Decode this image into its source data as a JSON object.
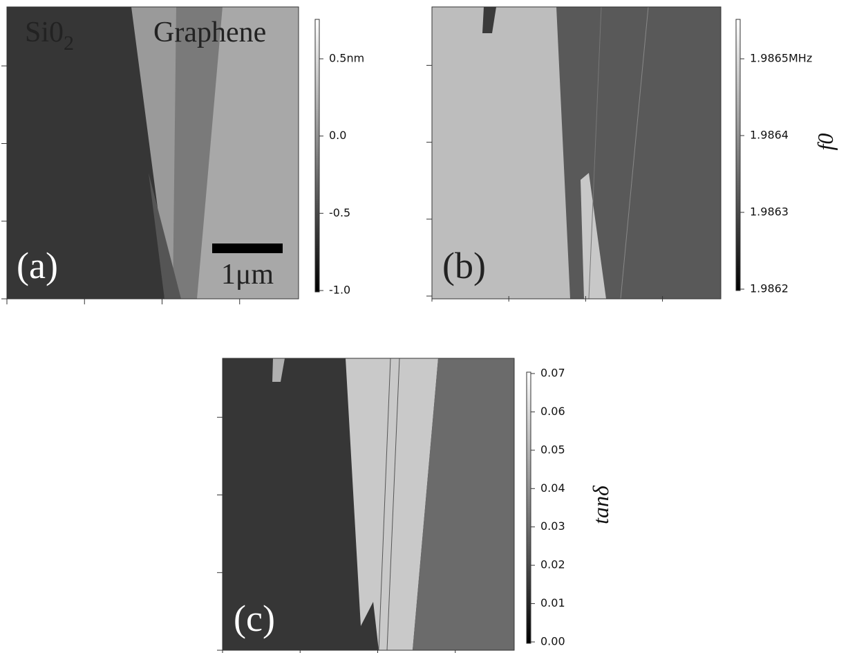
{
  "panels": [
    {
      "label": "(a)",
      "annotations": {
        "left": {
          "text": "Si0",
          "subscript": "2"
        },
        "right": "Graphene",
        "scale_bar": "1μm"
      },
      "colorbar": {
        "ticks": [
          "0.5nm",
          "0.0",
          "-0.5",
          "-1.0"
        ]
      }
    },
    {
      "label": "(b)",
      "colorbar": {
        "ticks": [
          "1.9865MHz",
          "1.9864",
          "1.9863",
          "1.9862"
        ],
        "title": "f0"
      }
    },
    {
      "label": "(c)",
      "colorbar": {
        "ticks": [
          "0.07",
          "0.06",
          "0.05",
          "0.04",
          "0.03",
          "0.02",
          "0.01",
          "0.00"
        ],
        "title": "tanδ"
      }
    }
  ]
}
